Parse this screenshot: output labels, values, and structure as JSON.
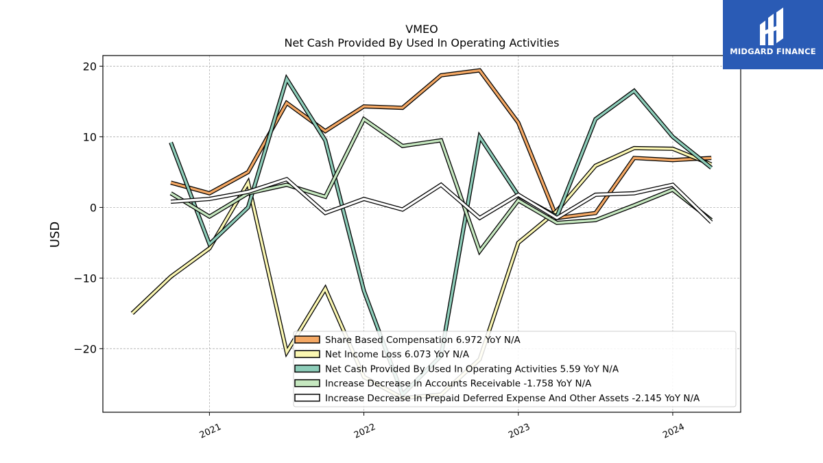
{
  "chart_data": {
    "type": "line",
    "title": "VMEO",
    "subtitle": "Net Cash Provided By Used In Operating Activities",
    "xlabel": "",
    "ylabel": "USD",
    "ylim": [
      -29,
      21.5
    ],
    "xlim": [
      2020.31,
      2024.44
    ],
    "x_ticks": [
      {
        "value": 2021,
        "label": "2021"
      },
      {
        "value": 2022,
        "label": "2022"
      },
      {
        "value": 2023,
        "label": "2023"
      },
      {
        "value": 2024,
        "label": "2024"
      }
    ],
    "y_ticks": [
      {
        "value": 20,
        "label": "20"
      },
      {
        "value": 10,
        "label": "10"
      },
      {
        "value": 0,
        "label": "0"
      },
      {
        "value": -10,
        "label": "−10"
      },
      {
        "value": -20,
        "label": "−20"
      }
    ],
    "grid": true,
    "legend_position": "bottom-right",
    "series": [
      {
        "name": "Share Based Compensation",
        "legend_label": "Share Based Compensation  6.972 YoY N/A",
        "color": "#f4a864",
        "x": [
          2020.75,
          2021.0,
          2021.25,
          2021.5,
          2021.75,
          2022.0,
          2022.25,
          2022.5,
          2022.75,
          2023.0,
          2023.25,
          2023.5,
          2023.75,
          2024.0,
          2024.25
        ],
        "y": [
          3.5,
          2.0,
          5.0,
          14.8,
          10.8,
          14.3,
          14.1,
          18.7,
          19.4,
          12.0,
          -1.5,
          -0.8,
          7.0,
          6.7,
          7.0
        ]
      },
      {
        "name": "Net Income Loss",
        "legend_label": "Net Income Loss  6.073 YoY N/A",
        "color": "#fbf7b2",
        "x": [
          2020.5,
          2020.75,
          2021.0,
          2021.25,
          2021.5,
          2021.75,
          2022.0,
          2022.25,
          2022.5,
          2022.75,
          2023.0,
          2023.25,
          2023.5,
          2023.75,
          2024.0,
          2024.25
        ],
        "y": [
          -15.0,
          -9.8,
          -5.8,
          3.5,
          -20.5,
          -11.5,
          -24.0,
          -27.0,
          -26.5,
          -21.5,
          -5.0,
          -0.5,
          5.9,
          8.4,
          8.3,
          6.1
        ]
      },
      {
        "name": "Net Cash Provided By Used In Operating Activities",
        "legend_label": "Net Cash Provided By Used In Operating Activities  5.59 YoY N/A",
        "color": "#8dcdb9",
        "x": [
          2020.75,
          2021.0,
          2021.25,
          2021.5,
          2021.75,
          2022.0,
          2022.25,
          2022.5,
          2022.75,
          2023.0,
          2023.25,
          2023.5,
          2023.75,
          2024.0,
          2024.25
        ],
        "y": [
          9.2,
          -5.2,
          0.0,
          18.2,
          9.5,
          -11.8,
          -26.5,
          -21.0,
          10.0,
          1.7,
          -1.3,
          12.5,
          16.5,
          10.0,
          5.6
        ]
      },
      {
        "name": "Increase Decrease In Accounts Receivable",
        "legend_label": "Increase Decrease In Accounts Receivable  -1.758 YoY N/A",
        "color": "#c6e8c0",
        "x": [
          2020.75,
          2021.0,
          2021.25,
          2021.5,
          2021.75,
          2022.0,
          2022.25,
          2022.5,
          2022.75,
          2023.0,
          2023.25,
          2023.5,
          2023.75,
          2024.0,
          2024.25
        ],
        "y": [
          2.0,
          -1.3,
          2.0,
          3.2,
          1.5,
          12.5,
          8.7,
          9.5,
          -6.2,
          1.0,
          -2.2,
          -1.8,
          0.3,
          2.5,
          -1.8
        ]
      },
      {
        "name": "Increase Decrease In Prepaid Deferred Expense And Other Assets",
        "legend_label": "Increase Decrease In Prepaid Deferred Expense And Other Assets  -2.145 YoY N/A",
        "color": "#ffffff",
        "x": [
          2020.75,
          2021.0,
          2021.25,
          2021.5,
          2021.75,
          2022.0,
          2022.25,
          2022.5,
          2022.75,
          2023.0,
          2023.25,
          2023.5,
          2023.75,
          2024.0,
          2024.25
        ],
        "y": [
          0.8,
          1.2,
          2.2,
          4.0,
          -0.8,
          1.2,
          -0.3,
          3.2,
          -1.5,
          1.8,
          -1.5,
          1.8,
          2.0,
          3.2,
          -2.1
        ]
      }
    ]
  },
  "logo": {
    "text": "MIDGARD FINANCE",
    "background": "#2a5bb5"
  }
}
